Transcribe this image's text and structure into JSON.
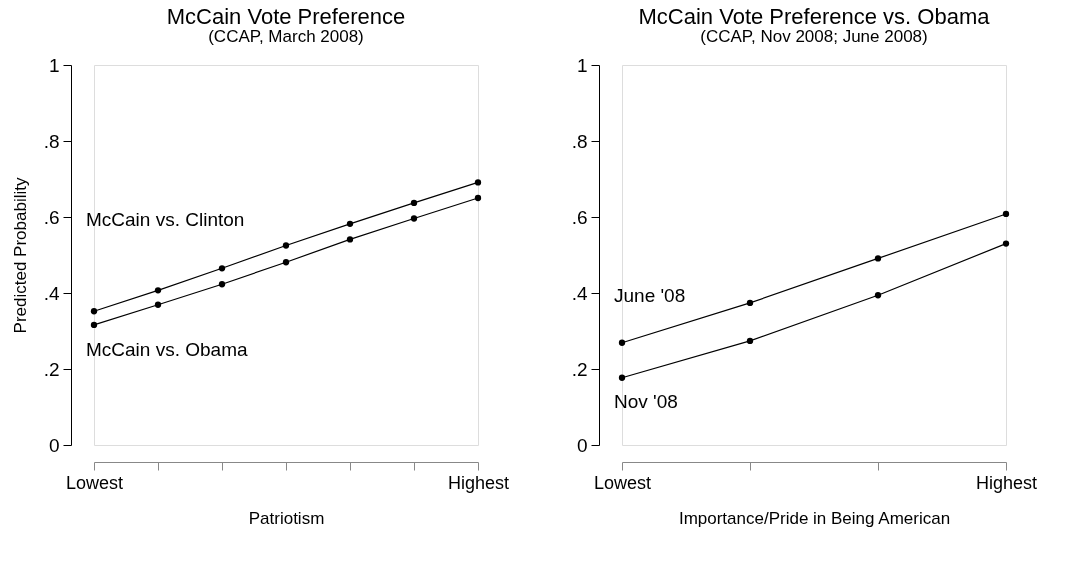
{
  "chart_data": [
    {
      "type": "line",
      "title": "McCain Vote Preference",
      "subtitle": "(CCAP, March 2008)",
      "xlabel": "Patriotism",
      "ylabel": "Predicted Probability",
      "categories": [
        "Lowest",
        null,
        null,
        null,
        null,
        null,
        "Highest"
      ],
      "ylim": [
        0,
        1
      ],
      "yticks": [
        0,
        {
          "value": 0.2,
          "label": ".2"
        },
        {
          "value": 0.4,
          "label": ".4"
        },
        {
          "value": 0.6,
          "label": ".6"
        },
        {
          "value": 0.8,
          "label": ".8"
        },
        1
      ],
      "series": [
        {
          "name": "McCain vs. Clinton",
          "color": "#000000",
          "values": [
            0.352,
            0.407,
            0.465,
            0.525,
            0.582,
            0.637,
            0.691
          ]
        },
        {
          "name": "McCain vs. Obama",
          "color": "#000000",
          "values": [
            0.316,
            0.369,
            0.423,
            0.481,
            0.541,
            0.596,
            0.65
          ]
        }
      ],
      "marker": "circle",
      "line_style": "solid"
    },
    {
      "type": "line",
      "title": "McCain Vote Preference vs. Obama",
      "subtitle": "(CCAP, Nov 2008; June 2008)",
      "xlabel": "Importance/Pride in Being American",
      "categories": [
        "Lowest",
        null,
        null,
        "Highest"
      ],
      "ylim": [
        0,
        1
      ],
      "yticks": [
        0,
        {
          "value": 0.2,
          "label": ".2"
        },
        {
          "value": 0.4,
          "label": ".4"
        },
        {
          "value": 0.6,
          "label": ".6"
        },
        {
          "value": 0.8,
          "label": ".8"
        },
        1
      ],
      "series": [
        {
          "name": "June '08",
          "color": "#000000",
          "values": [
            0.269,
            0.374,
            0.491,
            0.608
          ]
        },
        {
          "name": "Nov '08",
          "color": "#000000",
          "values": [
            0.177,
            0.274,
            0.394,
            0.53
          ]
        }
      ],
      "marker": "circle",
      "line_style": "solid"
    }
  ]
}
